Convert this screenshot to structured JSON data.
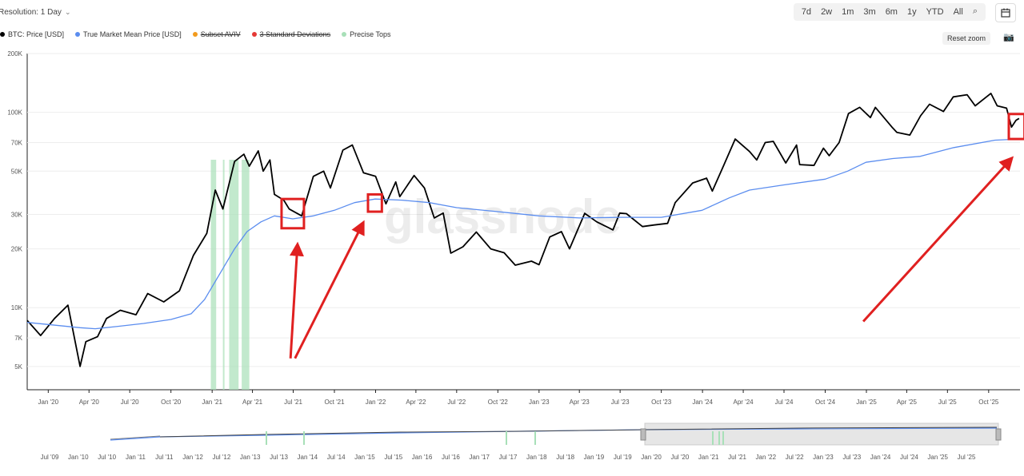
{
  "header": {
    "resolution_label": "Resolution: 1 Day",
    "range_buttons": [
      "7d",
      "2w",
      "1m",
      "3m",
      "6m",
      "1y",
      "YTD",
      "All"
    ],
    "reset_zoom": "Reset zoom"
  },
  "legend": [
    {
      "label": "BTC: Price [USD]",
      "color": "#000000",
      "strike": false
    },
    {
      "label": "True Market Mean Price [USD]",
      "color": "#5b8def",
      "strike": false
    },
    {
      "label": "Subset AVIV",
      "color": "#f29b1d",
      "strike": true
    },
    {
      "label": "3 Standard Deviations",
      "color": "#e53935",
      "strike": true
    },
    {
      "label": "Precise Tops",
      "color": "#a8e0b8",
      "strike": false
    }
  ],
  "watermark": "glassnode",
  "chart_data": {
    "type": "line",
    "y_scale": "log",
    "ylim": [
      3800,
      200000
    ],
    "y_ticks": [
      {
        "label": "200K",
        "value": 200000
      },
      {
        "label": "100K",
        "value": 100000
      },
      {
        "label": "70K",
        "value": 70000
      },
      {
        "label": "50K",
        "value": 50000
      },
      {
        "label": "30K",
        "value": 30000
      },
      {
        "label": "20K",
        "value": 20000
      },
      {
        "label": "10K",
        "value": 10000
      },
      {
        "label": "7K",
        "value": 7000
      },
      {
        "label": "5K",
        "value": 5000
      }
    ],
    "x_range": [
      "2019-11-15",
      "2025-12-10"
    ],
    "x_ticks": [
      "Jan '20",
      "Apr '20",
      "Jul '20",
      "Oct '20",
      "Jan '21",
      "Apr '21",
      "Jul '21",
      "Oct '21",
      "Jan '22",
      "Apr '22",
      "Jul '22",
      "Oct '22",
      "Jan '23",
      "Apr '23",
      "Jul '23",
      "Oct '23",
      "Jan '24",
      "Apr '24",
      "Jul '24",
      "Oct '24",
      "Jan '25",
      "Apr '25",
      "Jul '25",
      "Oct '25"
    ],
    "x_tick_dates": [
      "2020-01-01",
      "2020-04-01",
      "2020-07-01",
      "2020-10-01",
      "2021-01-01",
      "2021-04-01",
      "2021-07-01",
      "2021-10-01",
      "2022-01-01",
      "2022-04-01",
      "2022-07-01",
      "2022-10-01",
      "2023-01-01",
      "2023-04-01",
      "2023-07-01",
      "2023-10-01",
      "2024-01-01",
      "2024-04-01",
      "2024-07-01",
      "2024-10-01",
      "2025-01-01",
      "2025-04-01",
      "2025-07-01",
      "2025-10-01"
    ],
    "series": [
      {
        "name": "BTC: Price [USD]",
        "color": "#000000",
        "points": [
          [
            "2019-11-15",
            8600
          ],
          [
            "2019-12-15",
            7200
          ],
          [
            "2020-01-15",
            8800
          ],
          [
            "2020-02-14",
            10300
          ],
          [
            "2020-03-12",
            5000
          ],
          [
            "2020-03-25",
            6700
          ],
          [
            "2020-04-20",
            7100
          ],
          [
            "2020-05-10",
            8800
          ],
          [
            "2020-06-10",
            9700
          ],
          [
            "2020-07-15",
            9200
          ],
          [
            "2020-08-10",
            11800
          ],
          [
            "2020-09-15",
            10700
          ],
          [
            "2020-10-20",
            12200
          ],
          [
            "2020-11-20",
            18500
          ],
          [
            "2020-12-20",
            24000
          ],
          [
            "2021-01-08",
            40000
          ],
          [
            "2021-01-25",
            32000
          ],
          [
            "2021-02-20",
            56000
          ],
          [
            "2021-03-13",
            61000
          ],
          [
            "2021-03-25",
            53000
          ],
          [
            "2021-04-14",
            63500
          ],
          [
            "2021-04-25",
            50000
          ],
          [
            "2021-05-10",
            57000
          ],
          [
            "2021-05-20",
            38000
          ],
          [
            "2021-06-10",
            35500
          ],
          [
            "2021-06-22",
            32000
          ],
          [
            "2021-07-20",
            29500
          ],
          [
            "2021-08-15",
            47000
          ],
          [
            "2021-09-07",
            50000
          ],
          [
            "2021-09-22",
            41000
          ],
          [
            "2021-10-20",
            64000
          ],
          [
            "2021-11-10",
            68000
          ],
          [
            "2021-12-05",
            49000
          ],
          [
            "2022-01-01",
            47000
          ],
          [
            "2022-01-24",
            34000
          ],
          [
            "2022-02-15",
            44000
          ],
          [
            "2022-02-24",
            37000
          ],
          [
            "2022-03-28",
            47500
          ],
          [
            "2022-04-20",
            41000
          ],
          [
            "2022-05-12",
            28800
          ],
          [
            "2022-06-01",
            30500
          ],
          [
            "2022-06-18",
            19000
          ],
          [
            "2022-07-15",
            20500
          ],
          [
            "2022-08-14",
            24400
          ],
          [
            "2022-09-15",
            20000
          ],
          [
            "2022-10-15",
            19100
          ],
          [
            "2022-11-09",
            16500
          ],
          [
            "2022-12-15",
            17300
          ],
          [
            "2023-01-01",
            16600
          ],
          [
            "2023-01-25",
            23000
          ],
          [
            "2023-02-20",
            24500
          ],
          [
            "2023-03-10",
            20000
          ],
          [
            "2023-04-13",
            30400
          ],
          [
            "2023-05-10",
            27500
          ],
          [
            "2023-06-15",
            25000
          ],
          [
            "2023-06-30",
            30500
          ],
          [
            "2023-07-15",
            30300
          ],
          [
            "2023-08-20",
            26000
          ],
          [
            "2023-09-15",
            26500
          ],
          [
            "2023-10-15",
            27000
          ],
          [
            "2023-11-01",
            34500
          ],
          [
            "2023-12-10",
            43500
          ],
          [
            "2024-01-10",
            46000
          ],
          [
            "2024-01-23",
            39500
          ],
          [
            "2024-02-15",
            52000
          ],
          [
            "2024-03-14",
            73000
          ],
          [
            "2024-04-15",
            63000
          ],
          [
            "2024-05-01",
            57000
          ],
          [
            "2024-05-20",
            70000
          ],
          [
            "2024-06-07",
            71000
          ],
          [
            "2024-07-05",
            55000
          ],
          [
            "2024-07-29",
            68000
          ],
          [
            "2024-08-05",
            54000
          ],
          [
            "2024-09-06",
            53500
          ],
          [
            "2024-09-27",
            65500
          ],
          [
            "2024-10-10",
            60000
          ],
          [
            "2024-11-01",
            70000
          ],
          [
            "2024-11-22",
            98500
          ],
          [
            "2024-12-17",
            106000
          ],
          [
            "2025-01-10",
            94000
          ],
          [
            "2025-01-21",
            106000
          ],
          [
            "2025-02-27",
            84000
          ],
          [
            "2025-03-10",
            79000
          ],
          [
            "2025-04-08",
            76500
          ],
          [
            "2025-05-02",
            96000
          ],
          [
            "2025-05-22",
            110000
          ],
          [
            "2025-06-22",
            101000
          ],
          [
            "2025-07-14",
            120000
          ],
          [
            "2025-08-14",
            123000
          ],
          [
            "2025-09-01",
            108000
          ],
          [
            "2025-10-06",
            125000
          ],
          [
            "2025-10-20",
            108000
          ],
          [
            "2025-11-10",
            105000
          ],
          [
            "2025-11-21",
            84000
          ],
          [
            "2025-12-01",
            91000
          ],
          [
            "2025-12-08",
            93000
          ]
        ]
      },
      {
        "name": "True Market Mean Price [USD]",
        "color": "#5b8def",
        "points": [
          [
            "2019-11-15",
            8400
          ],
          [
            "2020-01-01",
            8200
          ],
          [
            "2020-03-12",
            7900
          ],
          [
            "2020-04-15",
            7800
          ],
          [
            "2020-06-01",
            8000
          ],
          [
            "2020-08-01",
            8300
          ],
          [
            "2020-10-01",
            8700
          ],
          [
            "2020-11-15",
            9300
          ],
          [
            "2020-12-15",
            11000
          ],
          [
            "2021-01-15",
            14500
          ],
          [
            "2021-02-20",
            20000
          ],
          [
            "2021-03-20",
            24500
          ],
          [
            "2021-04-20",
            27500
          ],
          [
            "2021-05-20",
            29500
          ],
          [
            "2021-06-30",
            28500
          ],
          [
            "2021-08-15",
            29500
          ],
          [
            "2021-10-01",
            31500
          ],
          [
            "2021-11-15",
            34500
          ],
          [
            "2021-12-31",
            36000
          ],
          [
            "2022-03-01",
            35500
          ],
          [
            "2022-05-01",
            34500
          ],
          [
            "2022-07-01",
            32500
          ],
          [
            "2022-10-01",
            31000
          ],
          [
            "2023-01-01",
            29500
          ],
          [
            "2023-04-01",
            28800
          ],
          [
            "2023-07-01",
            29000
          ],
          [
            "2023-10-01",
            29000
          ],
          [
            "2023-12-31",
            31500
          ],
          [
            "2024-03-01",
            36500
          ],
          [
            "2024-04-15",
            40000
          ],
          [
            "2024-07-01",
            42500
          ],
          [
            "2024-10-01",
            45500
          ],
          [
            "2024-11-20",
            50000
          ],
          [
            "2024-12-31",
            55500
          ],
          [
            "2025-03-01",
            58000
          ],
          [
            "2025-05-01",
            59500
          ],
          [
            "2025-07-15",
            66000
          ],
          [
            "2025-10-15",
            72000
          ],
          [
            "2025-12-08",
            73000
          ]
        ]
      }
    ],
    "precise_tops": [
      [
        "2020-12-29",
        "2021-01-10"
      ],
      [
        "2021-01-25",
        "2021-01-28"
      ],
      [
        "2021-02-08",
        "2021-03-01"
      ],
      [
        "2021-03-08",
        "2021-03-25"
      ]
    ],
    "annotations": {
      "boxes": [
        {
          "from": "2021-06-05",
          "to": "2021-07-25",
          "ymin": 25500,
          "ymax": 36000
        },
        {
          "from": "2021-12-15",
          "to": "2022-01-15",
          "ymin": 31000,
          "ymax": 38000
        },
        {
          "from": "2025-11-15",
          "to": "2025-12-20",
          "ymin": 73000,
          "ymax": 98000
        }
      ],
      "arrows": [
        {
          "from": [
            "2021-06-25",
            5500
          ],
          "to": [
            "2021-07-10",
            20000
          ]
        },
        {
          "from": [
            "2021-07-05",
            5500
          ],
          "to": [
            "2021-11-30",
            26000
          ]
        },
        {
          "from": [
            "2024-12-25",
            8500
          ],
          "to": [
            "2025-11-15",
            56000
          ]
        }
      ],
      "color": "#e02020"
    },
    "navigator": {
      "x_ticks": [
        "Jul '09",
        "Jan '10",
        "Jul '10",
        "Jan '11",
        "Jul '11",
        "Jan '12",
        "Jul '12",
        "Jan '13",
        "Jul '13",
        "Jan '14",
        "Jul '14",
        "Jan '15",
        "Jul '15",
        "Jan '16",
        "Jul '16",
        "Jan '17",
        "Jul '17",
        "Jan '18",
        "Jul '18",
        "Jan '19",
        "Jul '19",
        "Jan '20",
        "Jul '20",
        "Jan '21",
        "Jul '21",
        "Jan '22",
        "Jul '22",
        "Jan '23",
        "Jul '23",
        "Jan '24",
        "Jul '24",
        "Jan '25",
        "Jul '25"
      ]
    }
  }
}
